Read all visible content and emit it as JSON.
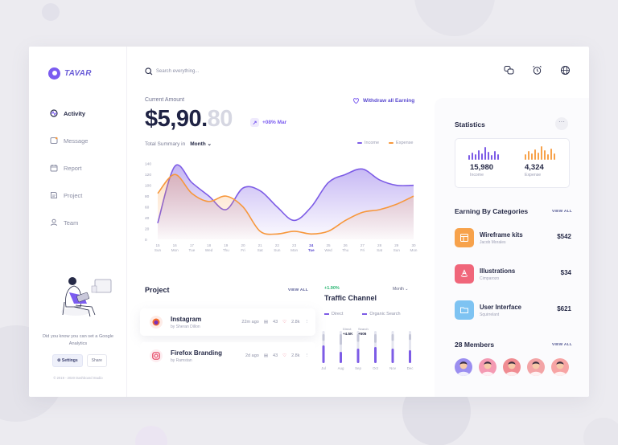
{
  "app": {
    "logo_text": "TAVAR"
  },
  "sidebar": {
    "items": [
      {
        "label": "Activity",
        "icon": "activity-icon",
        "active": true
      },
      {
        "label": "Message",
        "icon": "message-icon",
        "active": false
      },
      {
        "label": "Report",
        "icon": "calendar-icon",
        "active": false
      },
      {
        "label": "Project",
        "icon": "project-icon",
        "active": false
      },
      {
        "label": "Team",
        "icon": "user-icon",
        "active": false
      }
    ],
    "tip": "Did you know you can set a Google Analytics",
    "settings_label": "Settings",
    "share_label": "Share",
    "copyright": "© 2019 - 2020 Dashboard Studio"
  },
  "header": {
    "search_placeholder": "Search everything...",
    "icons": [
      "chat-icon",
      "alarm-clock-icon",
      "globe-icon"
    ]
  },
  "earnings": {
    "label": "Current Amount",
    "amount_main": "$5,90.",
    "amount_faded": "80",
    "growth": "+08% Mar",
    "withdraw_label": "Withdraw all Earning"
  },
  "summary": {
    "label": "Total Summary in",
    "period": "Month",
    "legend_income": "Income",
    "legend_expense": "Expense"
  },
  "chart_data": {
    "type": "area",
    "x_top": [
      "15",
      "16",
      "17",
      "18",
      "19",
      "20",
      "21",
      "22",
      "23",
      "24",
      "25",
      "26",
      "27",
      "28",
      "29",
      "30"
    ],
    "x_bottom": [
      "Sun",
      "Mon",
      "Tue",
      "Wed",
      "Thu",
      "Fri",
      "Sat",
      "Sun",
      "Mon",
      "Tue",
      "Wed",
      "Thu",
      "Fri",
      "Sat",
      "Sun",
      "Mon"
    ],
    "highlight_index": 9,
    "y_ticks": [
      0,
      20,
      40,
      60,
      80,
      100,
      120,
      140
    ],
    "ylim": [
      0,
      150
    ],
    "series": [
      {
        "name": "Income",
        "color": "#7d5ce6",
        "values": [
          30,
          135,
          105,
          80,
          55,
          95,
          90,
          60,
          35,
          60,
          105,
          120,
          130,
          110,
          100,
          100
        ]
      },
      {
        "name": "Expense",
        "color": "#f7973b",
        "values": [
          85,
          120,
          85,
          70,
          80,
          60,
          15,
          10,
          15,
          10,
          15,
          35,
          50,
          55,
          65,
          80
        ]
      }
    ]
  },
  "project": {
    "title": "Project",
    "view_all": "VIEW ALL",
    "items": [
      {
        "name": "Instagram",
        "by": "by Sheran Dillon",
        "time": "22m ago",
        "files": "43",
        "likes": "2.8k"
      },
      {
        "name": "Firefox Branding",
        "by": "by Ramstan",
        "time": "2d ago",
        "files": "43",
        "likes": "2.8k"
      }
    ]
  },
  "traffic": {
    "growth": "+1.90%",
    "title": "Traffic Channel",
    "period": "Month",
    "legend_direct": "Direct",
    "legend_organic": "Organic Search",
    "tooltip_direct_label": "Direct",
    "tooltip_direct_value": "+4.5K",
    "tooltip_search_label": "Search",
    "tooltip_search_value": "+506",
    "months": [
      "Jul",
      "Aug",
      "Sep",
      "Oct",
      "Nov",
      "Dec"
    ],
    "direct": [
      0.55,
      0.35,
      0.45,
      0.5,
      0.45,
      0.4
    ],
    "organic": [
      0.35,
      0.55,
      0.4,
      0.45,
      0.35,
      0.3
    ]
  },
  "statistics": {
    "title": "Statistics",
    "more": "···",
    "income_value": "15,980",
    "income_label": "Income",
    "expense_value": "4,324",
    "expense_label": "Expense"
  },
  "categories": {
    "title": "Earning By Categories",
    "view_all": "VIEW ALL",
    "items": [
      {
        "name": "Wireframe kits",
        "sub": "Jacob Morales",
        "price": "$542",
        "color": "#f7a24b"
      },
      {
        "name": "Illustrations",
        "sub": "Cimparozo",
        "price": "$34",
        "color": "#f0667a"
      },
      {
        "name": "User Interface",
        "sub": "Squirrelant",
        "price": "$621",
        "color": "#7ec3f2"
      }
    ]
  },
  "members": {
    "title": "28 Members",
    "view_all": "VIEW ALL",
    "avatars": [
      {
        "bg": "#9b8ef0"
      },
      {
        "bg": "#f49ab3"
      },
      {
        "bg": "#f08c92"
      },
      {
        "bg": "#f3a4a6"
      },
      {
        "bg": "#f7a4a4"
      }
    ]
  }
}
